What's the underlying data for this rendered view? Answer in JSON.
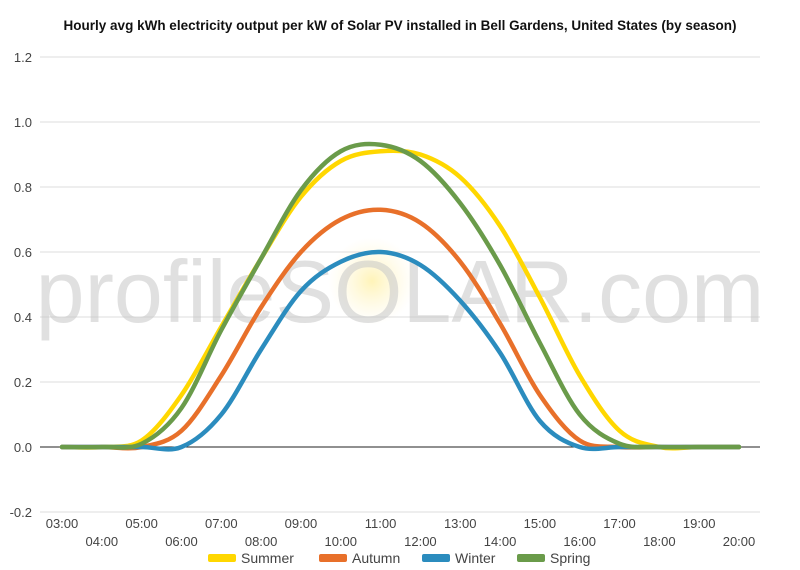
{
  "watermark": "profileSOLAR.com",
  "chart_data": {
    "type": "line",
    "title": "Hourly avg kWh electricity output per kW of Solar PV installed in Bell Gardens, United States (by season)",
    "xlabel": "",
    "ylabel": "",
    "ylim": [
      -0.2,
      1.2
    ],
    "yticks": [
      "-0.2",
      "0.0",
      "0.2",
      "0.4",
      "0.6",
      "0.8",
      "1.0",
      "1.2"
    ],
    "x": [
      "03:00",
      "04:00",
      "05:00",
      "06:00",
      "07:00",
      "08:00",
      "09:00",
      "10:00",
      "11:00",
      "12:00",
      "13:00",
      "14:00",
      "15:00",
      "16:00",
      "17:00",
      "18:00",
      "19:00",
      "20:00"
    ],
    "grid": true,
    "legend": "bottom",
    "series": [
      {
        "name": "Summer",
        "color": "#FFD700",
        "values": [
          0.0,
          0.0,
          0.02,
          0.16,
          0.37,
          0.58,
          0.77,
          0.88,
          0.91,
          0.9,
          0.83,
          0.68,
          0.46,
          0.22,
          0.05,
          0.0,
          0.0,
          0.0
        ]
      },
      {
        "name": "Autumn",
        "color": "#E8702A",
        "values": [
          0.0,
          0.0,
          0.0,
          0.05,
          0.22,
          0.43,
          0.6,
          0.7,
          0.73,
          0.69,
          0.57,
          0.38,
          0.16,
          0.02,
          0.0,
          0.0,
          0.0,
          0.0
        ]
      },
      {
        "name": "Winter",
        "color": "#2B8CBE",
        "values": [
          0.0,
          0.0,
          0.0,
          0.0,
          0.1,
          0.3,
          0.48,
          0.57,
          0.6,
          0.56,
          0.45,
          0.29,
          0.08,
          0.0,
          0.0,
          0.0,
          0.0,
          0.0
        ]
      },
      {
        "name": "Spring",
        "color": "#6A9B4A",
        "values": [
          0.0,
          0.0,
          0.01,
          0.12,
          0.36,
          0.58,
          0.79,
          0.91,
          0.93,
          0.88,
          0.75,
          0.56,
          0.32,
          0.1,
          0.01,
          0.0,
          0.0,
          0.0
        ]
      }
    ]
  }
}
